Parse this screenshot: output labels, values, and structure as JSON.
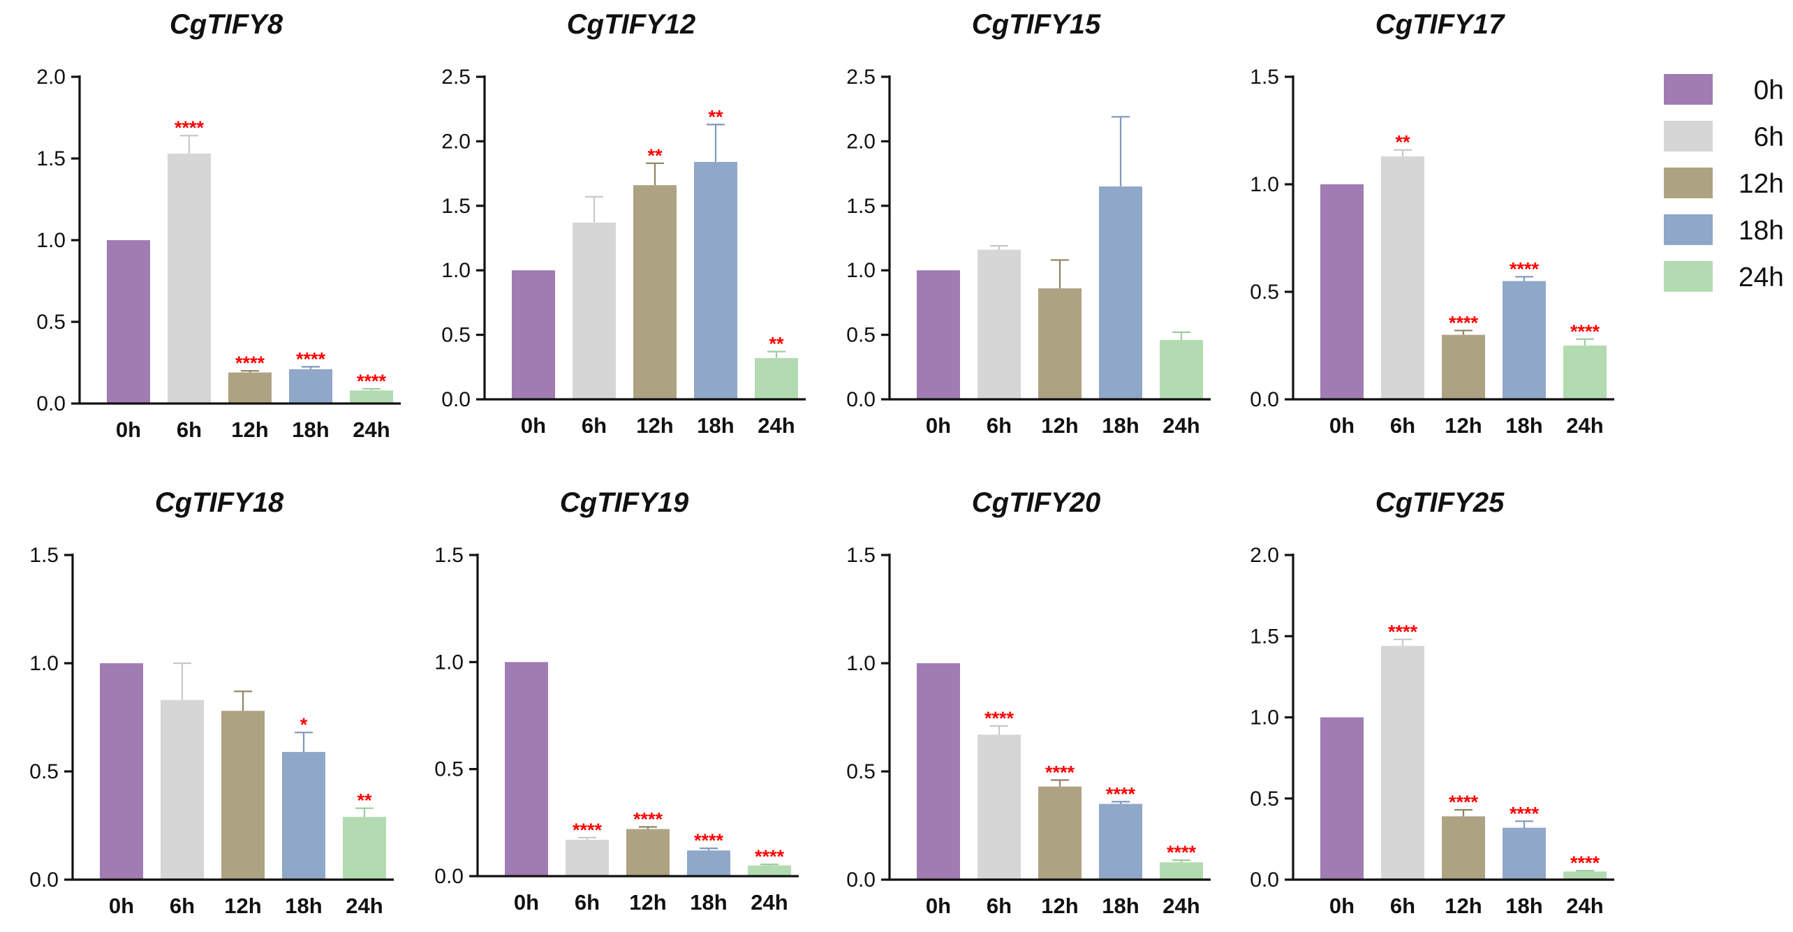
{
  "figure": {
    "legend": {
      "entries": [
        {
          "label": "0h",
          "color": "#a07cb3"
        },
        {
          "label": "6h",
          "color": "#d6d6d6"
        },
        {
          "label": "12h",
          "color": "#ada282"
        },
        {
          "label": "18h",
          "color": "#8fa7c8"
        },
        {
          "label": "24h",
          "color": "#b3dbb1"
        }
      ],
      "placement": "right"
    },
    "significance_color": "#ff0000",
    "error_bar_colors": [
      "#a07cb3",
      "#c8c8c8",
      "#8f8262",
      "#7f97bd",
      "#9fcb9f"
    ]
  },
  "chart_data": [
    {
      "type": "bar",
      "title": "CgTIFY8",
      "categories": [
        "0h",
        "6h",
        "12h",
        "18h",
        "24h"
      ],
      "values": [
        1.0,
        1.53,
        0.19,
        0.21,
        0.08
      ],
      "errors": [
        0.0,
        0.11,
        0.01,
        0.015,
        0.01
      ],
      "significance": [
        "",
        "****",
        "****",
        "****",
        "****"
      ],
      "ylim": [
        0,
        2.0
      ],
      "yticks": [
        "0.0",
        "0.5",
        "1.0",
        "1.5",
        "2.0"
      ],
      "xlabel": "",
      "ylabel": ""
    },
    {
      "type": "bar",
      "title": "CgTIFY12",
      "categories": [
        "0h",
        "6h",
        "12h",
        "18h",
        "24h"
      ],
      "values": [
        1.0,
        1.37,
        1.66,
        1.84,
        0.32
      ],
      "errors": [
        0.0,
        0.2,
        0.17,
        0.29,
        0.05
      ],
      "significance": [
        "",
        "",
        "**",
        "**",
        "**"
      ],
      "ylim": [
        0,
        2.5
      ],
      "yticks": [
        "0.0",
        "0.5",
        "1.0",
        "1.5",
        "2.0",
        "2.5"
      ],
      "xlabel": "",
      "ylabel": ""
    },
    {
      "type": "bar",
      "title": "CgTIFY15",
      "categories": [
        "0h",
        "6h",
        "12h",
        "18h",
        "24h"
      ],
      "values": [
        1.0,
        1.16,
        0.86,
        1.65,
        0.46
      ],
      "errors": [
        0.0,
        0.03,
        0.22,
        0.54,
        0.06
      ],
      "significance": [
        "",
        "",
        "",
        "",
        ""
      ],
      "ylim": [
        0,
        2.5
      ],
      "yticks": [
        "0.0",
        "0.5",
        "1.0",
        "1.5",
        "2.0",
        "2.5"
      ],
      "xlabel": "",
      "ylabel": ""
    },
    {
      "type": "bar",
      "title": "CgTIFY17",
      "categories": [
        "0h",
        "6h",
        "12h",
        "18h",
        "24h"
      ],
      "values": [
        1.0,
        1.13,
        0.3,
        0.55,
        0.25
      ],
      "errors": [
        0.0,
        0.03,
        0.02,
        0.02,
        0.03
      ],
      "significance": [
        "",
        "**",
        "****",
        "****",
        "****"
      ],
      "ylim": [
        0,
        1.5
      ],
      "yticks": [
        "0.0",
        "0.5",
        "1.0",
        "1.5"
      ],
      "xlabel": "",
      "ylabel": ""
    },
    {
      "type": "bar",
      "title": "CgTIFY18",
      "categories": [
        "0h",
        "6h",
        "12h",
        "18h",
        "24h"
      ],
      "values": [
        1.0,
        0.83,
        0.78,
        0.59,
        0.29
      ],
      "errors": [
        0.0,
        0.17,
        0.09,
        0.09,
        0.04
      ],
      "significance": [
        "",
        "",
        "",
        "*",
        "**"
      ],
      "ylim": [
        0,
        1.5
      ],
      "yticks": [
        "0.0",
        "0.5",
        "1.0",
        "1.5"
      ],
      "xlabel": "",
      "ylabel": ""
    },
    {
      "type": "bar",
      "title": "CgTIFY19",
      "categories": [
        "0h",
        "6h",
        "12h",
        "18h",
        "24h"
      ],
      "values": [
        1.0,
        0.17,
        0.22,
        0.12,
        0.05
      ],
      "errors": [
        0.0,
        0.01,
        0.01,
        0.01,
        0.005
      ],
      "significance": [
        "",
        "****",
        "****",
        "****",
        "****"
      ],
      "ylim": [
        0,
        1.5
      ],
      "yticks": [
        "0.0",
        "0.5",
        "1.0",
        "1.5"
      ],
      "xlabel": "",
      "ylabel": ""
    },
    {
      "type": "bar",
      "title": "CgTIFY20",
      "categories": [
        "0h",
        "6h",
        "12h",
        "18h",
        "24h"
      ],
      "values": [
        1.0,
        0.67,
        0.43,
        0.35,
        0.08
      ],
      "errors": [
        0.0,
        0.04,
        0.03,
        0.01,
        0.01
      ],
      "significance": [
        "",
        "****",
        "****",
        "****",
        "****"
      ],
      "ylim": [
        0,
        1.5
      ],
      "yticks": [
        "0.0",
        "0.5",
        "1.0",
        "1.5"
      ],
      "xlabel": "",
      "ylabel": ""
    },
    {
      "type": "bar",
      "title": "CgTIFY25",
      "categories": [
        "0h",
        "6h",
        "12h",
        "18h",
        "24h"
      ],
      "values": [
        1.0,
        1.44,
        0.39,
        0.32,
        0.05
      ],
      "errors": [
        0.0,
        0.04,
        0.04,
        0.04,
        0.005
      ],
      "significance": [
        "",
        "****",
        "****",
        "****",
        "****"
      ],
      "ylim": [
        0,
        2.0
      ],
      "yticks": [
        "0.0",
        "0.5",
        "1.0",
        "1.5",
        "2.0"
      ],
      "xlabel": "",
      "ylabel": ""
    }
  ]
}
